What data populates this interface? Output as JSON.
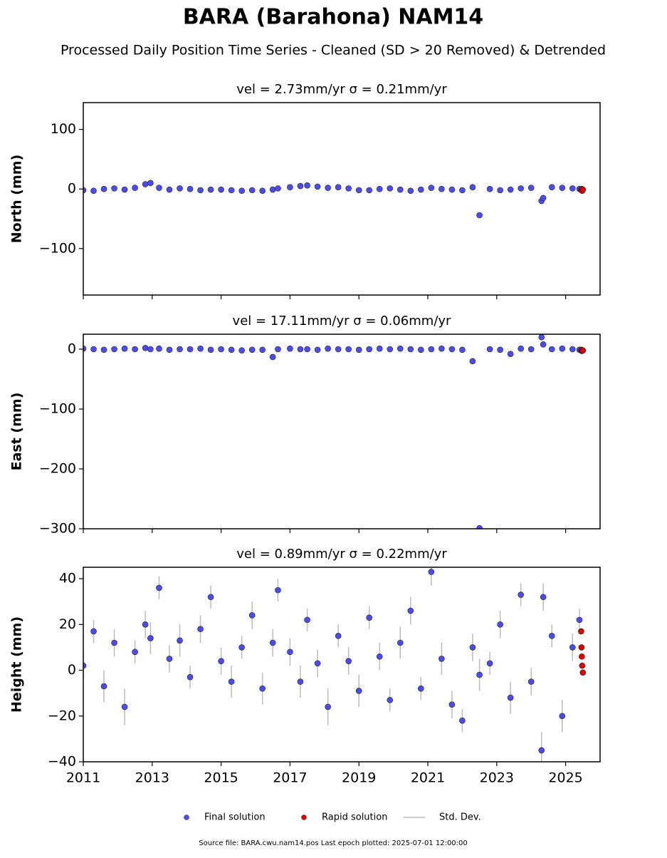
{
  "title": "BARA (Barahona) NAM14",
  "subtitle": "Processed Daily Position Time Series - Cleaned (SD > 20 Removed) & Detrended",
  "footer": "Source file: BARA.cwu.nam14.pos  Last epoch plotted: 2025-07-01 12:00:00",
  "chart_data": [
    {
      "type": "scatter",
      "title": "vel = 2.73mm/yr   σ = 0.21mm/yr",
      "y_label": "North (mm)",
      "xlim": [
        2011,
        2026
      ],
      "xticks": [
        2011,
        2013,
        2015,
        2017,
        2019,
        2021,
        2023,
        2025
      ],
      "ylim": [
        -178,
        145
      ],
      "yticks": [
        {
          "value": -100,
          "label": "−100"
        },
        0,
        100
      ],
      "series": [
        {
          "color": "#4b4bef",
          "x": [
            2011.0,
            2011.3,
            2011.6,
            2011.9,
            2012.2,
            2012.5,
            2012.8,
            2012.95,
            2013.2,
            2013.5,
            2013.8,
            2014.1,
            2014.4,
            2014.7,
            2015.0,
            2015.3,
            2015.6,
            2015.9,
            2016.2,
            2016.5,
            2016.65,
            2017.0,
            2017.3,
            2017.5,
            2017.8,
            2018.1,
            2018.4,
            2018.7,
            2019.0,
            2019.3,
            2019.6,
            2019.9,
            2020.2,
            2020.5,
            2020.8,
            2021.1,
            2021.4,
            2021.7,
            2022.0,
            2022.3,
            2022.5,
            2022.8,
            2023.1,
            2023.4,
            2023.7,
            2024.0,
            2024.3,
            2024.35,
            2024.6,
            2024.9,
            2025.2,
            2025.4
          ],
          "values": [
            -2,
            -3,
            0,
            1,
            -1,
            2,
            8,
            10,
            2,
            -1,
            1,
            0,
            -2,
            -1,
            -1,
            -2,
            -3,
            -2,
            -3,
            -1,
            1,
            3,
            5,
            6,
            4,
            2,
            3,
            1,
            -2,
            -2,
            0,
            1,
            -1,
            -3,
            -1,
            2,
            0,
            -1,
            -2,
            3,
            -44,
            0,
            -2,
            -1,
            1,
            2,
            -20,
            -15,
            3,
            2,
            1,
            0
          ]
        },
        {
          "color": "#e00000",
          "x": [
            2025.45,
            2025.46,
            2025.47,
            2025.48,
            2025.5
          ],
          "values": [
            -1,
            -2,
            0,
            -3,
            -1
          ]
        }
      ]
    },
    {
      "type": "scatter",
      "title": "vel = 17.11mm/yr   σ = 0.06mm/yr",
      "y_label": "East (mm)",
      "xlim": [
        2011,
        2026
      ],
      "xticks": [
        2011,
        2013,
        2015,
        2017,
        2019,
        2021,
        2023,
        2025
      ],
      "ylim": [
        -300,
        25
      ],
      "yticks": [
        {
          "value": -300,
          "label": "−300"
        },
        {
          "value": -200,
          "label": "−200"
        },
        {
          "value": -100,
          "label": "−100"
        },
        0
      ],
      "series": [
        {
          "color": "#4b4bef",
          "x": [
            2011.0,
            2011.3,
            2011.6,
            2011.9,
            2012.2,
            2012.5,
            2012.8,
            2012.95,
            2013.2,
            2013.5,
            2013.8,
            2014.1,
            2014.4,
            2014.7,
            2015.0,
            2015.3,
            2015.6,
            2015.9,
            2016.2,
            2016.5,
            2016.65,
            2017.0,
            2017.3,
            2017.5,
            2017.8,
            2018.1,
            2018.4,
            2018.7,
            2019.0,
            2019.3,
            2019.6,
            2019.9,
            2020.2,
            2020.5,
            2020.8,
            2021.1,
            2021.4,
            2021.7,
            2022.0,
            2022.3,
            2022.5,
            2022.8,
            2023.1,
            2023.4,
            2023.7,
            2024.0,
            2024.3,
            2024.35,
            2024.6,
            2024.9,
            2025.2,
            2025.4
          ],
          "values": [
            1,
            0,
            -1,
            0,
            1,
            0,
            2,
            0,
            1,
            -1,
            0,
            0,
            1,
            -1,
            0,
            -1,
            -2,
            -1,
            -1,
            -13,
            0,
            1,
            0,
            0,
            -1,
            1,
            0,
            0,
            -1,
            0,
            1,
            0,
            1,
            0,
            -1,
            0,
            1,
            0,
            -1,
            -20,
            -299,
            0,
            -1,
            -8,
            1,
            0,
            20,
            8,
            0,
            1,
            0,
            -1
          ]
        },
        {
          "color": "#e00000",
          "x": [
            2025.45,
            2025.46,
            2025.47,
            2025.48,
            2025.5
          ],
          "values": [
            -2,
            -1,
            -3,
            -2,
            -2
          ]
        }
      ]
    },
    {
      "type": "scatter",
      "title": "vel = 0.89mm/yr   σ = 0.22mm/yr",
      "y_label": "Height (mm)",
      "xlim": [
        2011,
        2026
      ],
      "xticks": [
        2011,
        2013,
        2015,
        2017,
        2019,
        2021,
        2023,
        2025
      ],
      "ylim": [
        -40,
        45
      ],
      "yticks": [
        {
          "value": -40,
          "label": "−40"
        },
        {
          "value": -20,
          "label": "−20"
        },
        0,
        20,
        40
      ],
      "series": [
        {
          "name": "Final solution",
          "color": "#4b4bef",
          "error_name": "Std. Dev.",
          "error_color": "#bbbbbb",
          "x": [
            2011.0,
            2011.3,
            2011.6,
            2011.9,
            2012.2,
            2012.5,
            2012.8,
            2012.95,
            2013.2,
            2013.5,
            2013.8,
            2014.1,
            2014.4,
            2014.7,
            2015.0,
            2015.3,
            2015.6,
            2015.9,
            2016.2,
            2016.5,
            2016.65,
            2017.0,
            2017.3,
            2017.5,
            2017.8,
            2018.1,
            2018.4,
            2018.7,
            2019.0,
            2019.3,
            2019.6,
            2019.9,
            2020.2,
            2020.5,
            2020.8,
            2021.1,
            2021.4,
            2021.7,
            2022.0,
            2022.3,
            2022.5,
            2022.8,
            2023.1,
            2023.4,
            2023.7,
            2024.0,
            2024.3,
            2024.35,
            2024.6,
            2024.9,
            2025.2,
            2025.4
          ],
          "values": [
            2,
            17,
            -7,
            12,
            -16,
            8,
            20,
            14,
            36,
            5,
            13,
            -3,
            18,
            32,
            4,
            -5,
            10,
            24,
            -8,
            12,
            35,
            8,
            -5,
            22,
            3,
            -16,
            15,
            4,
            -9,
            23,
            6,
            -13,
            12,
            26,
            -8,
            43,
            5,
            -15,
            -22,
            10,
            -2,
            3,
            20,
            -12,
            33,
            -5,
            -35,
            32,
            15,
            -20,
            10,
            22
          ],
          "errors": [
            6,
            5,
            7,
            6,
            8,
            5,
            6,
            7,
            5,
            6,
            7,
            5,
            6,
            5,
            6,
            7,
            5,
            6,
            7,
            6,
            5,
            6,
            7,
            5,
            6,
            8,
            5,
            6,
            7,
            5,
            6,
            5,
            7,
            6,
            5,
            6,
            7,
            6,
            5,
            6,
            7,
            5,
            6,
            7,
            5,
            6,
            8,
            6,
            5,
            7,
            6,
            5
          ]
        },
        {
          "name": "Rapid solution",
          "color": "#e00000",
          "x": [
            2025.45,
            2025.46,
            2025.47,
            2025.48,
            2025.5
          ],
          "values": [
            17,
            10,
            6,
            2,
            -1
          ]
        }
      ]
    }
  ]
}
